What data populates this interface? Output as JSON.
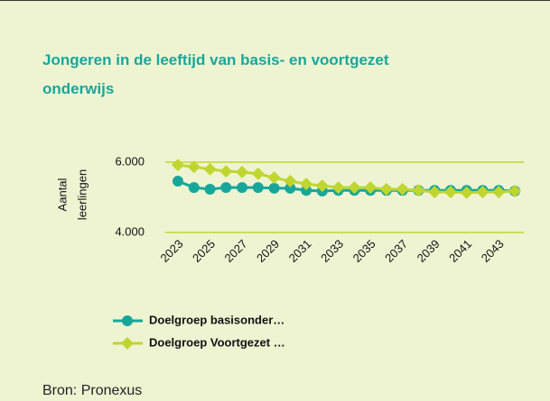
{
  "chart_data": {
    "type": "line",
    "title": "Jongeren in de leeftijd van basis- en voortgezet onderwijs",
    "ylabel": [
      "Aantal",
      "leerlingen"
    ],
    "x": [
      2023,
      2024,
      2025,
      2026,
      2027,
      2028,
      2029,
      2030,
      2031,
      2032,
      2033,
      2034,
      2035,
      2036,
      2037,
      2038,
      2039,
      2040,
      2041,
      2042,
      2043,
      2044
    ],
    "xlim": [
      2023,
      2044
    ],
    "xticks": [
      2023,
      2025,
      2027,
      2029,
      2031,
      2033,
      2035,
      2037,
      2039,
      2041,
      2043
    ],
    "ylim": [
      4000,
      6000
    ],
    "yticks": [
      {
        "value": 4000,
        "label": "4.000"
      },
      {
        "value": 6000,
        "label": "6.000"
      }
    ],
    "grid": true,
    "series": [
      {
        "name": "Doelgroep basisonder…",
        "color": "#17a79a",
        "marker": "circle",
        "values": [
          5460,
          5280,
          5230,
          5280,
          5280,
          5280,
          5260,
          5260,
          5200,
          5180,
          5200,
          5200,
          5200,
          5200,
          5200,
          5200,
          5200,
          5200,
          5200,
          5200,
          5200,
          5180
        ]
      },
      {
        "name": "Doelgroep Voortgezet …",
        "color": "#bfd630",
        "marker": "diamond",
        "values": [
          5920,
          5870,
          5800,
          5740,
          5720,
          5670,
          5560,
          5460,
          5380,
          5330,
          5280,
          5280,
          5280,
          5230,
          5230,
          5200,
          5150,
          5150,
          5130,
          5150,
          5150,
          5180
        ]
      }
    ]
  },
  "source": "Bron: Pronexus"
}
